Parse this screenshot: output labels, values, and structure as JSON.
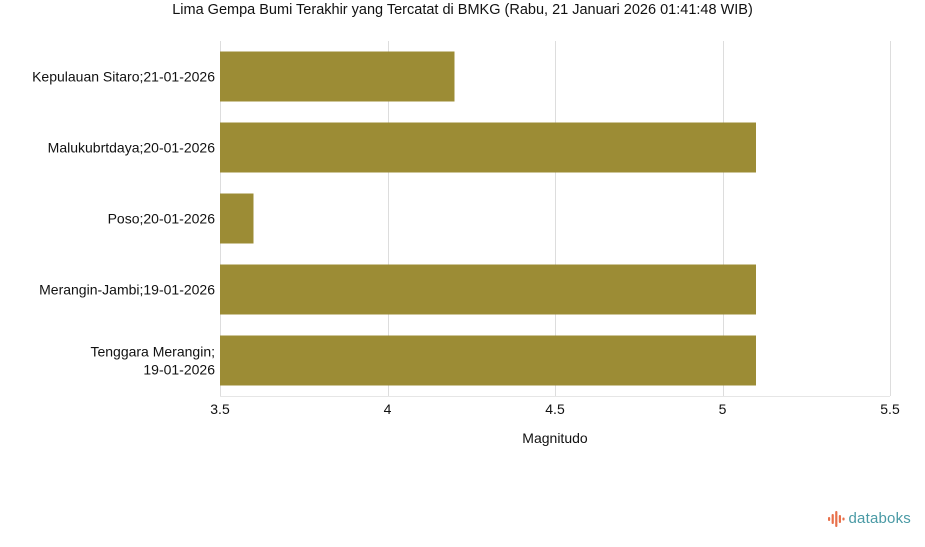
{
  "chart_data": {
    "type": "bar",
    "orientation": "horizontal",
    "title": "Lima Gempa Bumi Terakhir yang Tercatat di BMKG (Rabu, 21 Januari 2026 01:41:48 WIB)",
    "xlabel": "Magnitudo",
    "ylabel": "",
    "categories": [
      [
        "Kepulauan Sitaro;21-01-2026"
      ],
      [
        "Malukubrtdaya;20-01-2026"
      ],
      [
        "Poso;20-01-2026"
      ],
      [
        "Merangin-Jambi;19-01-2026"
      ],
      [
        "Tenggara Merangin;",
        "19-01-2026"
      ]
    ],
    "values": [
      4.2,
      5.1,
      3.6,
      5.1,
      5.1
    ],
    "xlim": [
      3.5,
      5.5
    ],
    "xticks": [
      "3.5",
      "4",
      "4.5",
      "5",
      "5.5"
    ],
    "grid": true,
    "bar_color": "#9c8c35",
    "grid_color": "#dddddd"
  },
  "brand": {
    "name": "databoks",
    "icon": "databoks-logo-icon",
    "color": "#4a9aa5",
    "accent_color": "#e8704a"
  }
}
